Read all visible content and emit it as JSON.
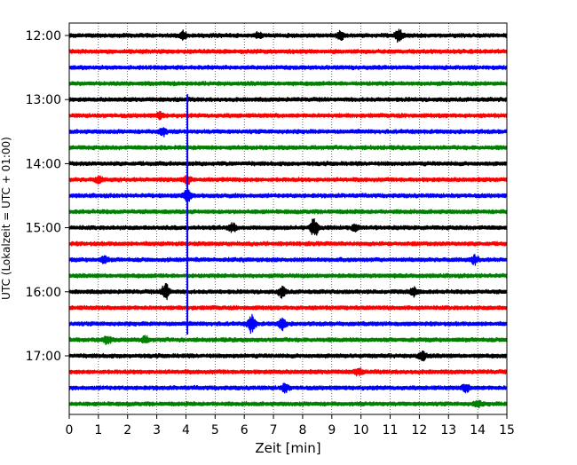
{
  "chart_data": {
    "type": "line",
    "title": "",
    "xlabel": "Zeit  [min]",
    "ylabel": "UTC (Lokalzeit = UTC + 01:00)",
    "xlim": [
      0,
      15
    ],
    "x_ticks": [
      "0",
      "1",
      "2",
      "3",
      "4",
      "5",
      "6",
      "7",
      "8",
      "9",
      "10",
      "11",
      "12",
      "13",
      "14",
      "15"
    ],
    "y_ticks": [
      "12:00",
      "13:00",
      "14:00",
      "15:00",
      "16:00",
      "17:00"
    ],
    "grid": "vertical dotted",
    "trace_interval_min": 15,
    "trace_colors": [
      "#000000",
      "#ff0000",
      "#0000ff",
      "#008000"
    ],
    "trace_start_times": [
      "12:00",
      "12:15",
      "12:30",
      "12:45",
      "13:00",
      "13:15",
      "13:30",
      "13:45",
      "14:00",
      "14:15",
      "14:30",
      "14:45",
      "15:00",
      "15:15",
      "15:30",
      "15:45",
      "16:00",
      "16:15",
      "16:30",
      "16:45",
      "17:00",
      "17:15",
      "17:30",
      "17:45"
    ],
    "events": [
      {
        "trace": 0,
        "x": 3.9,
        "amp": 4
      },
      {
        "trace": 0,
        "x": 6.5,
        "amp": 3
      },
      {
        "trace": 0,
        "x": 9.3,
        "amp": 4
      },
      {
        "trace": 0,
        "x": 11.3,
        "amp": 7
      },
      {
        "trace": 5,
        "x": 3.1,
        "amp": 3
      },
      {
        "trace": 6,
        "x": 3.2,
        "amp": 4
      },
      {
        "trace": 9,
        "x": 1.0,
        "amp": 3
      },
      {
        "trace": 9,
        "x": 4.05,
        "amp": 4
      },
      {
        "trace": 10,
        "x": 4.05,
        "amp": 6
      },
      {
        "trace": 12,
        "x": 5.6,
        "amp": 4
      },
      {
        "trace": 12,
        "x": 8.4,
        "amp": 10
      },
      {
        "trace": 12,
        "x": 9.8,
        "amp": 3
      },
      {
        "trace": 14,
        "x": 1.2,
        "amp": 3
      },
      {
        "trace": 14,
        "x": 13.9,
        "amp": 4
      },
      {
        "trace": 16,
        "x": 3.3,
        "amp": 9
      },
      {
        "trace": 16,
        "x": 7.3,
        "amp": 5
      },
      {
        "trace": 16,
        "x": 11.8,
        "amp": 4
      },
      {
        "trace": 18,
        "x": 6.25,
        "amp": 9
      },
      {
        "trace": 18,
        "x": 7.3,
        "amp": 6
      },
      {
        "trace": 19,
        "x": 1.3,
        "amp": 4
      },
      {
        "trace": 19,
        "x": 2.6,
        "amp": 3
      },
      {
        "trace": 20,
        "x": 12.1,
        "amp": 5
      },
      {
        "trace": 21,
        "x": 9.9,
        "amp": 3
      },
      {
        "trace": 22,
        "x": 7.4,
        "amp": 4
      },
      {
        "trace": 22,
        "x": 13.6,
        "amp": 4
      },
      {
        "trace": 23,
        "x": 14.0,
        "amp": 3
      }
    ],
    "vertical_spike": {
      "x": 4.05,
      "from": "13:00",
      "to": "16:45",
      "color": "#0000ff"
    }
  }
}
